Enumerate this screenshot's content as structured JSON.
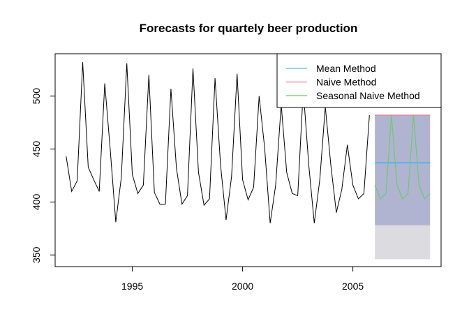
{
  "chart_data": {
    "type": "line",
    "title": "Forecasts for quartely beer production",
    "xlabel": "",
    "ylabel": "",
    "xlim": [
      1991.5,
      2009
    ],
    "ylim": [
      339,
      540
    ],
    "x_ticks": [
      1995,
      2000,
      2005
    ],
    "y_ticks": [
      350,
      400,
      450,
      500
    ],
    "grid": false,
    "legend_position": "top-right",
    "history": {
      "start": 1992.0,
      "step": 0.25,
      "values": [
        443,
        410,
        420,
        532,
        433,
        421,
        410,
        512,
        449,
        381,
        423,
        531,
        426,
        408,
        416,
        520,
        409,
        398,
        398,
        507,
        432,
        398,
        406,
        526,
        428,
        397,
        403,
        517,
        435,
        383,
        424,
        521,
        421,
        402,
        414,
        500,
        451,
        380,
        416,
        492,
        428,
        408,
        406,
        506,
        435,
        380,
        421,
        490,
        435,
        390,
        412,
        454,
        416,
        403,
        408,
        482
      ],
      "color": "#000000"
    },
    "forecast_x": [
      2006.0,
      2006.25,
      2006.5,
      2006.75,
      2007.0,
      2007.25,
      2007.5,
      2007.75,
      2008.0,
      2008.25,
      2008.5
    ],
    "interval_80": [
      378,
      482
    ],
    "interval_95": [
      346,
      482
    ],
    "interval_80_color": "#b0b4d1",
    "interval_95_color": "#dcdce0",
    "series": [
      {
        "name": "Mean Method",
        "color": "#56b4e9",
        "values": [
          437,
          437,
          437,
          437,
          437,
          437,
          437,
          437,
          437,
          437,
          437
        ]
      },
      {
        "name": "Naive Method",
        "color": "#e87b8e",
        "values": [
          482,
          482,
          482,
          482,
          482,
          482,
          482,
          482,
          482,
          482,
          482
        ]
      },
      {
        "name": "Seasonal Naive Method",
        "color": "#6ccb6c",
        "values": [
          416,
          403,
          408,
          482,
          416,
          403,
          408,
          482,
          416,
          403,
          408
        ]
      }
    ]
  }
}
